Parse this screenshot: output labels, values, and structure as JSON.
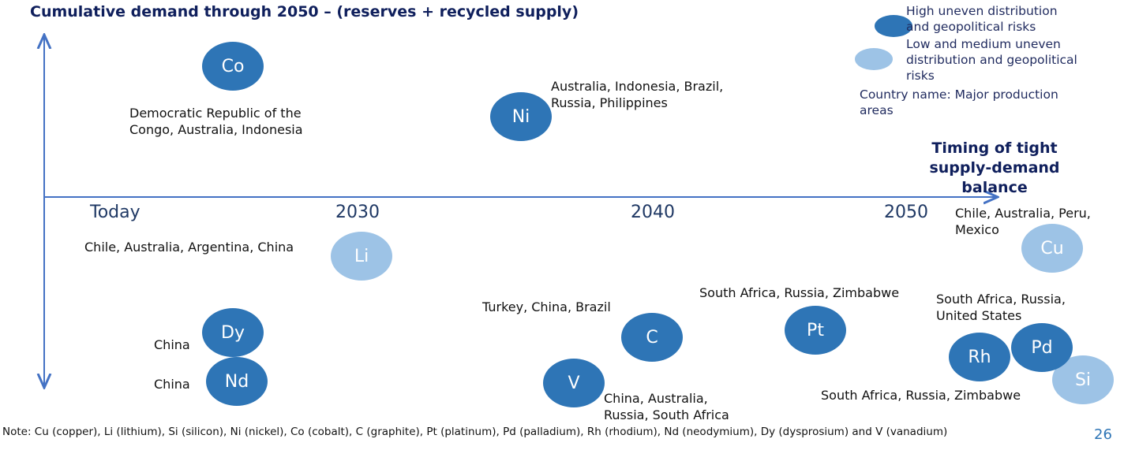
{
  "title": "Cumulative demand through 2050 – (reserves + recycled supply)",
  "x_axis_title": "Timing of tight supply-demand balance",
  "timeline": [
    "Today",
    "2030",
    "2040",
    "2050"
  ],
  "legend": {
    "high": "High uneven distribution\nand geopolitical risks",
    "low": "Low and medium uneven\ndistribution and geopolitical\nrisks",
    "country_note": "Country name: Major production\nareas"
  },
  "colors": {
    "high": "#2e75b6",
    "low": "#9dc3e6",
    "axis": "#4472c4",
    "title": "#0f1f5c"
  },
  "minerals": [
    {
      "symbol": "Co",
      "risk": "high",
      "areas": "Democratic Republic of the\nCongo, Australia, Indonesia"
    },
    {
      "symbol": "Ni",
      "risk": "high",
      "areas": "Australia, Indonesia, Brazil,\nRussia, Philippines"
    },
    {
      "symbol": "Li",
      "risk": "low",
      "areas": "Chile, Australia, Argentina, China"
    },
    {
      "symbol": "Cu",
      "risk": "low",
      "areas": "Chile, Australia, Peru,\nMexico"
    },
    {
      "symbol": "Dy",
      "risk": "high",
      "areas": "China"
    },
    {
      "symbol": "Nd",
      "risk": "high",
      "areas": "China"
    },
    {
      "symbol": "C",
      "risk": "high",
      "areas": "Turkey, China, Brazil"
    },
    {
      "symbol": "V",
      "risk": "high",
      "areas": "China, Australia,\nRussia, South Africa"
    },
    {
      "symbol": "Pt",
      "risk": "high",
      "areas": "South Africa, Russia, Zimbabwe"
    },
    {
      "symbol": "Pd",
      "risk": "high",
      "areas": "South Africa, Russia,\nUnited States"
    },
    {
      "symbol": "Rh",
      "risk": "high",
      "areas": ""
    },
    {
      "symbol": "Si",
      "risk": "low",
      "areas": "South Africa, Russia, Zimbabwe"
    }
  ],
  "note": "Note: Cu (copper), Li (lithium), Si (silicon), Ni (nickel), Co (cobalt), C (graphite), Pt (platinum), Pd (palladium), Rh (rhodium), Nd (neodymium), Dy (dysprosium) and V (vanadium)",
  "page_number": "26"
}
